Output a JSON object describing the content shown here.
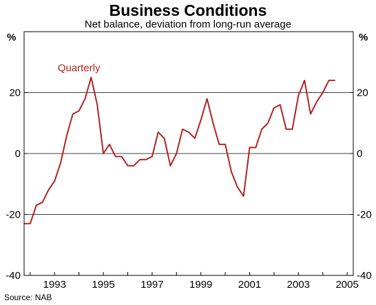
{
  "chart_data": {
    "type": "line",
    "title": "Business Conditions",
    "subtitle": "Net balance, deviation from long-run average",
    "ylabel_left": "%",
    "ylabel_right": "%",
    "source": "Source: NAB",
    "xlim": [
      1991.75,
      2005.25
    ],
    "ylim": [
      -40,
      40
    ],
    "yticks": [
      -40,
      -20,
      0,
      20
    ],
    "xticks": [
      1993,
      1995,
      1997,
      1999,
      2001,
      2003,
      2005
    ],
    "gridlines_y": [
      -20,
      0,
      20
    ],
    "line_color": "#b22222",
    "series": [
      {
        "name": "Quarterly",
        "label_value": [
          1994.0,
          27
        ],
        "x": [
          1991.75,
          1992.0,
          1992.25,
          1992.5,
          1992.75,
          1993.0,
          1993.25,
          1993.5,
          1993.75,
          1994.0,
          1994.25,
          1994.5,
          1994.75,
          1995.0,
          1995.25,
          1995.5,
          1995.75,
          1996.0,
          1996.25,
          1996.5,
          1996.75,
          1997.0,
          1997.25,
          1997.5,
          1997.75,
          1998.0,
          1998.25,
          1998.5,
          1998.75,
          1999.0,
          1999.25,
          1999.5,
          1999.75,
          2000.0,
          2000.25,
          2000.5,
          2000.75,
          2001.0,
          2001.25,
          2001.5,
          2001.75,
          2002.0,
          2002.25,
          2002.5,
          2002.75,
          2003.0,
          2003.25,
          2003.5,
          2003.75,
          2004.0,
          2004.25,
          2004.5
        ],
        "values": [
          -23,
          -23,
          -17,
          -16,
          -12,
          -9,
          -3,
          6,
          13,
          14,
          18,
          25,
          16,
          0,
          3,
          -1,
          -1,
          -4,
          -4,
          -2,
          -2,
          -1,
          7,
          5,
          -4,
          0,
          8,
          7,
          5,
          11,
          18,
          10,
          3,
          3,
          -6,
          -11,
          -14,
          2,
          2,
          8,
          10,
          15,
          16,
          8,
          8,
          19,
          24,
          13,
          17,
          20,
          24,
          24
        ]
      }
    ]
  }
}
